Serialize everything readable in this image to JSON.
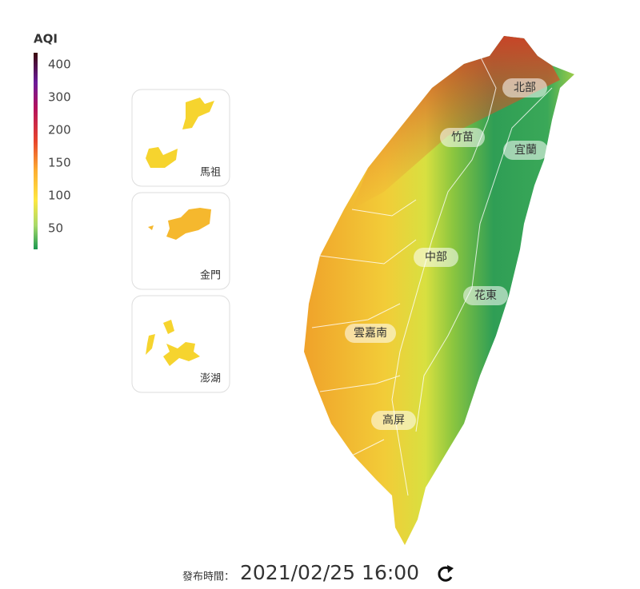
{
  "legend": {
    "title": "AQI",
    "ticks": [
      400,
      300,
      200,
      150,
      100,
      50
    ]
  },
  "insets": [
    {
      "label": "馬祖"
    },
    {
      "label": "金門"
    },
    {
      "label": "澎湖"
    }
  ],
  "regions": [
    {
      "label": "北部"
    },
    {
      "label": "竹苗"
    },
    {
      "label": "宜蘭"
    },
    {
      "label": "中部"
    },
    {
      "label": "花東"
    },
    {
      "label": "雲嘉南"
    },
    {
      "label": "高屏"
    }
  ],
  "footer": {
    "label": "發布時間：",
    "time": "2021/02/25 16:00"
  }
}
